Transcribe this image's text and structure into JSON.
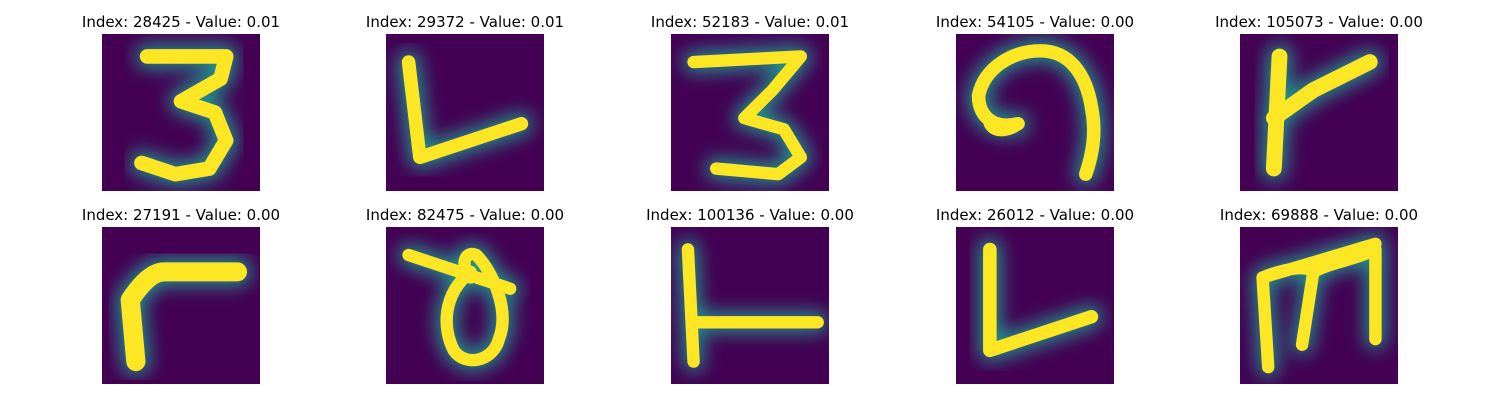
{
  "panels": [
    {
      "index": "28425",
      "value": "0.01",
      "title": "Index: 28425 - Value: 0.01",
      "glyph": "digit-3-handwritten"
    },
    {
      "index": "29372",
      "value": "0.01",
      "title": "Index: 29372 - Value: 0.01",
      "glyph": "letter-l-handwritten"
    },
    {
      "index": "52183",
      "value": "0.01",
      "title": "Index: 52183 - Value: 0.01",
      "glyph": "digit-3-handwritten"
    },
    {
      "index": "54105",
      "value": "0.00",
      "title": "Index: 54105 - Value: 0.00",
      "glyph": "curl-handwritten"
    },
    {
      "index": "105073",
      "value": "0.00",
      "title": "Index: 105073 - Value: 0.00",
      "glyph": "letter-k-handwritten"
    },
    {
      "index": "27191",
      "value": "0.00",
      "title": "Index: 27191 - Value: 0.00",
      "glyph": "letter-r-handwritten"
    },
    {
      "index": "82475",
      "value": "0.00",
      "title": "Index: 82475 - Value: 0.00",
      "glyph": "letter-d-handwritten"
    },
    {
      "index": "100136",
      "value": "0.00",
      "title": "Index: 100136 - Value: 0.00",
      "glyph": "letter-l-handwritten"
    },
    {
      "index": "26012",
      "value": "0.00",
      "title": "Index: 26012 - Value: 0.00",
      "glyph": "letter-l-handwritten"
    },
    {
      "index": "69888",
      "value": "0.00",
      "title": "Index: 69888 - Value: 0.00",
      "glyph": "letter-m-handwritten"
    }
  ],
  "colors": {
    "background": "#440154",
    "stroke_core": "#fde725",
    "stroke_edge": "#21918c"
  }
}
